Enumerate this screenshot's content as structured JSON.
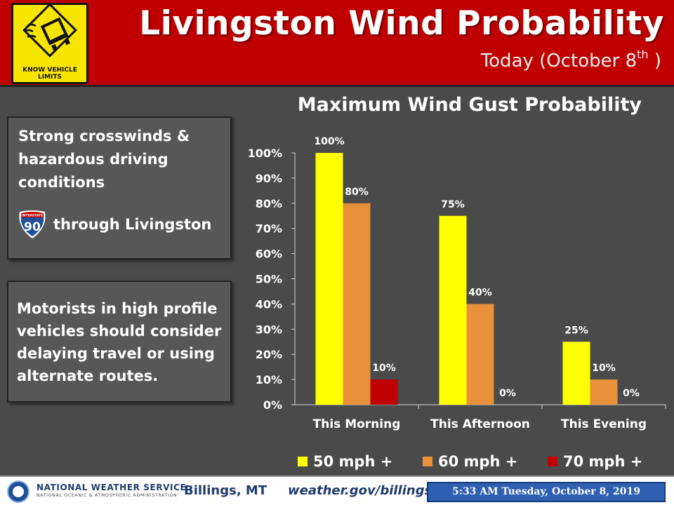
{
  "header": {
    "title": "Livingston Wind Probability",
    "subtitle": "Today (October 8",
    "subtitle_sup": "th",
    "subtitle_end": " )",
    "sign_caption_1": "KNOW VEHICLE",
    "sign_caption_2": "LIMITS"
  },
  "info_box_1": {
    "line1": "Strong crosswinds &",
    "line2": "hazardous driving",
    "line3": "conditions",
    "shield_label": "INTERSTATE",
    "shield_number": "90",
    "route_text": "through Livingston"
  },
  "info_box_2": {
    "line1": "Motorists in high profile",
    "line2": "vehicles should consider",
    "line3": "delaying travel or using",
    "line4": "alternate routes."
  },
  "chart_data": {
    "type": "bar",
    "title": "Maximum Wind Gust Probability",
    "categories": [
      "This Morning",
      "This Afternoon",
      "This Evening"
    ],
    "series": [
      {
        "name": "50 mph +",
        "values": [
          100,
          75,
          25
        ],
        "color": "#ffff00"
      },
      {
        "name": "60 mph +",
        "values": [
          80,
          40,
          10
        ],
        "color": "#e8913a"
      },
      {
        "name": "70 mph +",
        "values": [
          10,
          0,
          0
        ],
        "color": "#c00000"
      }
    ],
    "data_labels": [
      [
        "100%",
        "75%",
        "25%"
      ],
      [
        "80%",
        "40%",
        "10%"
      ],
      [
        "10%",
        "0%",
        "0%"
      ]
    ],
    "y_ticks": [
      "0%",
      "10%",
      "20%",
      "30%",
      "40%",
      "50%",
      "60%",
      "70%",
      "80%",
      "90%",
      "100%"
    ],
    "ylim": [
      0,
      100
    ],
    "grid": false,
    "legend_position": "bottom"
  },
  "footer": {
    "agency": "NATIONAL WEATHER SERVICE",
    "agency_sub": "NATIONAL OCEANIC & ATMOSPHERIC ADMINISTRATION",
    "office": "Billings, MT",
    "url": "weather.gov/billings",
    "timestamp": "5:33 AM Tuesday, October 8, 2019"
  }
}
